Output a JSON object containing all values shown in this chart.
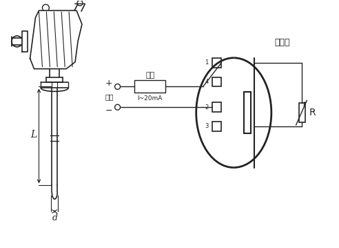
{
  "bg_color": "#ffffff",
  "line_color": "#222222",
  "title_text": "热电阱",
  "label_fuzai": "负载",
  "label_dianyuan": "电源",
  "label_current": "I~20mA",
  "label_L": "L",
  "label_d": "d",
  "label_plus": "+",
  "label_minus": "−",
  "label_R": "R",
  "terminal_labels": [
    "1",
    "4",
    "2",
    "3"
  ],
  "figsize": [
    4.92,
    3.59
  ],
  "dpi": 100
}
